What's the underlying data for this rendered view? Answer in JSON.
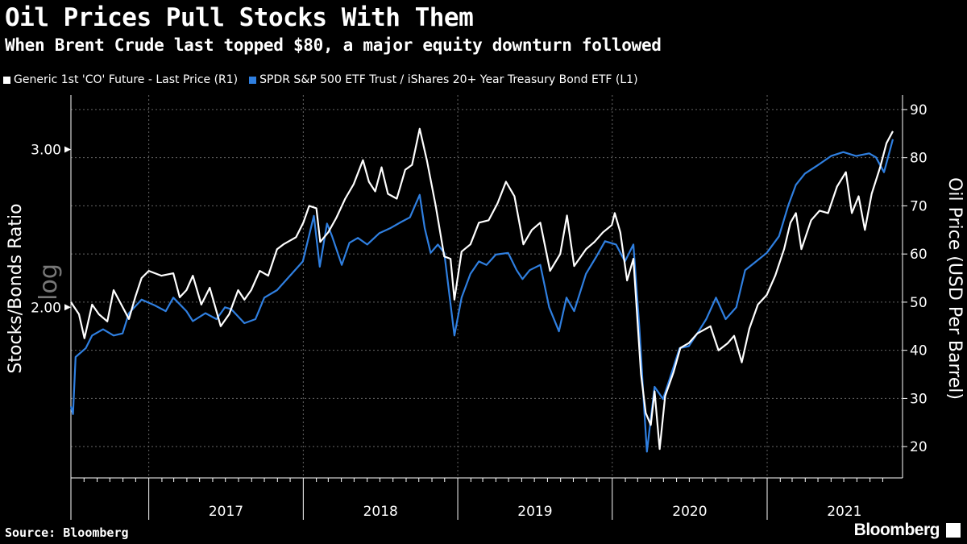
{
  "title": "Oil Prices Pull Stocks With Them",
  "subtitle": "When Brent Crude last topped $80, a major equity downturn followed",
  "source": "Source: Bloomberg",
  "brand": "Bloomberg",
  "legend": [
    {
      "label": "Generic 1st 'CO' Future - Last Price (R1)",
      "color": "#ffffff"
    },
    {
      "label": "SPDR S&P 500 ETF Trust / iShares 20+ Year Treasury Bond ETF (L1)",
      "color": "#2f7fe0"
    }
  ],
  "chart_data": {
    "type": "line",
    "x_type": "date",
    "x_range": [
      "2016-07-01",
      "2021-10-25"
    ],
    "xticks": [
      "2017",
      "2018",
      "2019",
      "2020",
      "2021"
    ],
    "left_axis": {
      "label": "Stocks/Bonds Ratio",
      "scale": "log",
      "scale_label": "log",
      "ticks": [
        "2.00",
        "3.00"
      ],
      "range": [
        1.29,
        3.45
      ]
    },
    "right_axis": {
      "label": "Oil Price (USD Per Barrel)",
      "ticks": [
        20,
        30,
        40,
        50,
        60,
        70,
        80,
        90
      ],
      "range": [
        13.5,
        93
      ]
    },
    "grid": true,
    "legend_position": "top",
    "series": [
      {
        "name": "Generic 1st 'CO' Future - Last Price (R1)",
        "axis": "right",
        "color": "#ffffff",
        "points": [
          [
            "2016-07-01",
            50.0
          ],
          [
            "2016-07-20",
            47.5
          ],
          [
            "2016-08-02",
            42.5
          ],
          [
            "2016-08-20",
            49.5
          ],
          [
            "2016-09-05",
            47.5
          ],
          [
            "2016-09-25",
            46.0
          ],
          [
            "2016-10-10",
            52.5
          ],
          [
            "2016-10-31",
            49.0
          ],
          [
            "2016-11-15",
            46.5
          ],
          [
            "2016-11-30",
            51.0
          ],
          [
            "2016-12-15",
            55.0
          ],
          [
            "2017-01-01",
            56.5
          ],
          [
            "2017-01-31",
            55.5
          ],
          [
            "2017-02-28",
            56.0
          ],
          [
            "2017-03-15",
            51.0
          ],
          [
            "2017-03-31",
            52.5
          ],
          [
            "2017-04-15",
            55.5
          ],
          [
            "2017-05-05",
            49.5
          ],
          [
            "2017-05-25",
            53.0
          ],
          [
            "2017-06-20",
            45.0
          ],
          [
            "2017-07-10",
            47.5
          ],
          [
            "2017-07-31",
            52.5
          ],
          [
            "2017-08-15",
            50.5
          ],
          [
            "2017-08-31",
            52.5
          ],
          [
            "2017-09-20",
            56.5
          ],
          [
            "2017-10-10",
            55.5
          ],
          [
            "2017-10-31",
            61.0
          ],
          [
            "2017-11-15",
            62.0
          ],
          [
            "2017-12-15",
            63.5
          ],
          [
            "2018-01-01",
            66.5
          ],
          [
            "2018-01-15",
            70.0
          ],
          [
            "2018-02-01",
            69.5
          ],
          [
            "2018-02-10",
            62.5
          ],
          [
            "2018-03-01",
            64.5
          ],
          [
            "2018-03-20",
            67.5
          ],
          [
            "2018-04-10",
            71.5
          ],
          [
            "2018-04-30",
            74.5
          ],
          [
            "2018-05-22",
            79.5
          ],
          [
            "2018-06-05",
            75.0
          ],
          [
            "2018-06-20",
            73.0
          ],
          [
            "2018-07-05",
            78.0
          ],
          [
            "2018-07-20",
            72.5
          ],
          [
            "2018-08-10",
            71.5
          ],
          [
            "2018-08-30",
            77.5
          ],
          [
            "2018-09-15",
            78.5
          ],
          [
            "2018-10-03",
            86.0
          ],
          [
            "2018-10-20",
            79.5
          ],
          [
            "2018-11-10",
            70.0
          ],
          [
            "2018-11-30",
            59.5
          ],
          [
            "2018-12-15",
            59.0
          ],
          [
            "2018-12-24",
            50.5
          ],
          [
            "2019-01-10",
            60.5
          ],
          [
            "2019-01-31",
            62.0
          ],
          [
            "2019-02-20",
            66.5
          ],
          [
            "2019-03-15",
            67.0
          ],
          [
            "2019-04-05",
            70.5
          ],
          [
            "2019-04-25",
            75.0
          ],
          [
            "2019-05-15",
            72.0
          ],
          [
            "2019-06-05",
            62.0
          ],
          [
            "2019-06-25",
            65.0
          ],
          [
            "2019-07-15",
            66.5
          ],
          [
            "2019-08-07",
            56.5
          ],
          [
            "2019-08-31",
            60.0
          ],
          [
            "2019-09-16",
            68.0
          ],
          [
            "2019-10-03",
            57.5
          ],
          [
            "2019-10-31",
            61.0
          ],
          [
            "2019-11-20",
            62.5
          ],
          [
            "2019-12-10",
            64.5
          ],
          [
            "2019-12-31",
            66.0
          ],
          [
            "2020-01-07",
            68.5
          ],
          [
            "2020-01-20",
            64.5
          ],
          [
            "2020-02-05",
            54.5
          ],
          [
            "2020-02-20",
            59.0
          ],
          [
            "2020-03-09",
            35.0
          ],
          [
            "2020-03-20",
            27.0
          ],
          [
            "2020-04-01",
            24.5
          ],
          [
            "2020-04-10",
            31.5
          ],
          [
            "2020-04-22",
            19.5
          ],
          [
            "2020-05-05",
            30.5
          ],
          [
            "2020-05-25",
            35.5
          ],
          [
            "2020-06-10",
            40.5
          ],
          [
            "2020-06-30",
            41.5
          ],
          [
            "2020-07-20",
            43.5
          ],
          [
            "2020-08-20",
            45.0
          ],
          [
            "2020-09-08",
            40.0
          ],
          [
            "2020-09-30",
            41.5
          ],
          [
            "2020-10-15",
            43.0
          ],
          [
            "2020-11-02",
            37.5
          ],
          [
            "2020-11-20",
            44.5
          ],
          [
            "2020-12-10",
            49.5
          ],
          [
            "2020-12-31",
            51.5
          ],
          [
            "2021-01-20",
            55.5
          ],
          [
            "2021-02-10",
            61.0
          ],
          [
            "2021-02-25",
            66.5
          ],
          [
            "2021-03-10",
            68.5
          ],
          [
            "2021-03-23",
            61.0
          ],
          [
            "2021-04-15",
            67.0
          ],
          [
            "2021-05-05",
            69.0
          ],
          [
            "2021-05-25",
            68.5
          ],
          [
            "2021-06-15",
            74.0
          ],
          [
            "2021-07-06",
            77.0
          ],
          [
            "2021-07-20",
            68.5
          ],
          [
            "2021-08-05",
            72.0
          ],
          [
            "2021-08-20",
            65.0
          ],
          [
            "2021-09-05",
            72.5
          ],
          [
            "2021-09-25",
            78.0
          ],
          [
            "2021-10-10",
            83.0
          ],
          [
            "2021-10-25",
            85.5
          ]
        ]
      },
      {
        "name": "SPDR S&P 500 ETF Trust / iShares 20+ Year Treasury Bond ETF (L1)",
        "axis": "left",
        "color": "#2f7fe0",
        "points": [
          [
            "2016-07-01",
            1.55
          ],
          [
            "2016-07-06",
            1.52
          ],
          [
            "2016-07-12",
            1.76
          ],
          [
            "2016-08-05",
            1.8
          ],
          [
            "2016-08-20",
            1.86
          ],
          [
            "2016-09-15",
            1.89
          ],
          [
            "2016-10-10",
            1.86
          ],
          [
            "2016-10-31",
            1.87
          ],
          [
            "2016-11-15",
            1.97
          ],
          [
            "2016-12-15",
            2.04
          ],
          [
            "2017-01-15",
            2.01
          ],
          [
            "2017-02-10",
            1.98
          ],
          [
            "2017-02-28",
            2.05
          ],
          [
            "2017-03-31",
            1.98
          ],
          [
            "2017-04-15",
            1.93
          ],
          [
            "2017-05-15",
            1.97
          ],
          [
            "2017-06-10",
            1.94
          ],
          [
            "2017-06-30",
            2.0
          ],
          [
            "2017-07-15",
            1.99
          ],
          [
            "2017-08-15",
            1.92
          ],
          [
            "2017-09-10",
            1.94
          ],
          [
            "2017-10-01",
            2.05
          ],
          [
            "2017-10-31",
            2.09
          ],
          [
            "2017-12-01",
            2.17
          ],
          [
            "2017-12-31",
            2.25
          ],
          [
            "2018-01-26",
            2.53
          ],
          [
            "2018-02-09",
            2.22
          ],
          [
            "2018-02-26",
            2.48
          ],
          [
            "2018-03-10",
            2.4
          ],
          [
            "2018-04-02",
            2.23
          ],
          [
            "2018-04-20",
            2.36
          ],
          [
            "2018-05-10",
            2.39
          ],
          [
            "2018-06-01",
            2.35
          ],
          [
            "2018-06-30",
            2.42
          ],
          [
            "2018-07-25",
            2.45
          ],
          [
            "2018-08-20",
            2.49
          ],
          [
            "2018-09-10",
            2.52
          ],
          [
            "2018-10-03",
            2.67
          ],
          [
            "2018-10-15",
            2.45
          ],
          [
            "2018-10-29",
            2.3
          ],
          [
            "2018-11-15",
            2.35
          ],
          [
            "2018-11-30",
            2.3
          ],
          [
            "2018-12-24",
            1.86
          ],
          [
            "2019-01-10",
            2.05
          ],
          [
            "2019-01-31",
            2.18
          ],
          [
            "2019-02-20",
            2.25
          ],
          [
            "2019-03-10",
            2.23
          ],
          [
            "2019-04-01",
            2.29
          ],
          [
            "2019-04-30",
            2.3
          ],
          [
            "2019-05-20",
            2.2
          ],
          [
            "2019-06-03",
            2.15
          ],
          [
            "2019-06-20",
            2.2
          ],
          [
            "2019-07-15",
            2.23
          ],
          [
            "2019-08-05",
            2.0
          ],
          [
            "2019-08-28",
            1.88
          ],
          [
            "2019-09-15",
            2.05
          ],
          [
            "2019-10-03",
            1.98
          ],
          [
            "2019-10-31",
            2.18
          ],
          [
            "2019-11-25",
            2.28
          ],
          [
            "2019-12-15",
            2.37
          ],
          [
            "2020-01-10",
            2.35
          ],
          [
            "2020-01-31",
            2.25
          ],
          [
            "2020-02-20",
            2.35
          ],
          [
            "2020-03-05",
            1.9
          ],
          [
            "2020-03-16",
            1.55
          ],
          [
            "2020-03-23",
            1.38
          ],
          [
            "2020-04-10",
            1.63
          ],
          [
            "2020-04-30",
            1.58
          ],
          [
            "2020-05-15",
            1.66
          ],
          [
            "2020-06-08",
            1.8
          ],
          [
            "2020-06-30",
            1.81
          ],
          [
            "2020-07-20",
            1.87
          ],
          [
            "2020-08-10",
            1.94
          ],
          [
            "2020-09-02",
            2.05
          ],
          [
            "2020-09-25",
            1.94
          ],
          [
            "2020-10-20",
            2.0
          ],
          [
            "2020-11-10",
            2.2
          ],
          [
            "2020-12-01",
            2.24
          ],
          [
            "2020-12-31",
            2.3
          ],
          [
            "2021-01-29",
            2.4
          ],
          [
            "2021-02-20",
            2.6
          ],
          [
            "2021-03-10",
            2.74
          ],
          [
            "2021-03-31",
            2.82
          ],
          [
            "2021-04-30",
            2.88
          ],
          [
            "2021-06-01",
            2.95
          ],
          [
            "2021-06-30",
            2.98
          ],
          [
            "2021-07-30",
            2.95
          ],
          [
            "2021-08-30",
            2.97
          ],
          [
            "2021-09-15",
            2.94
          ],
          [
            "2021-10-04",
            2.83
          ],
          [
            "2021-10-25",
            3.08
          ]
        ]
      }
    ]
  }
}
